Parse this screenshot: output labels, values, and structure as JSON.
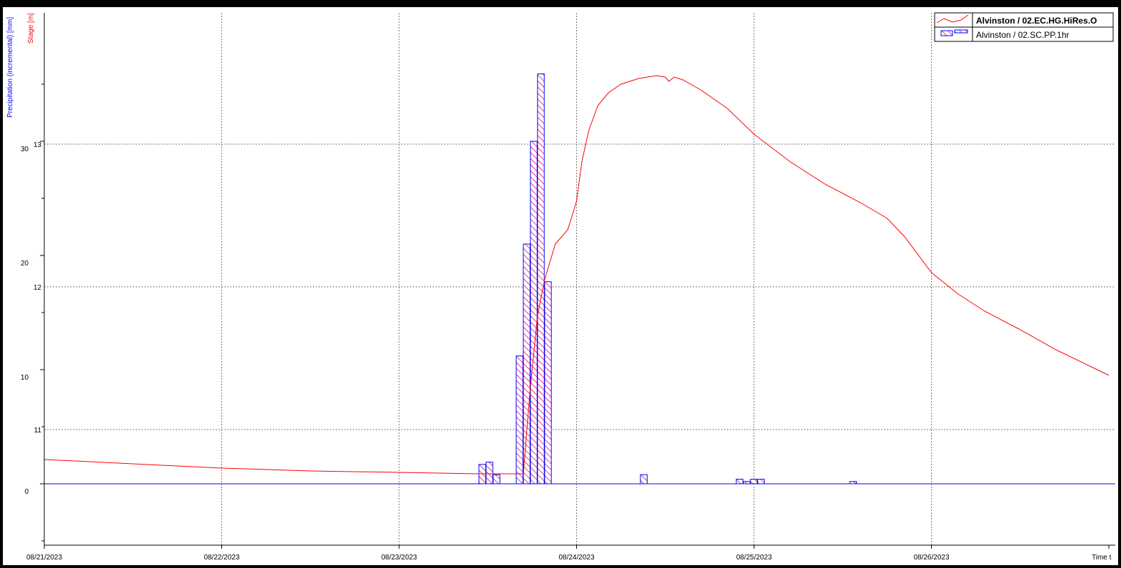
{
  "chart_data": {
    "type": "line",
    "x_tick_labels": [
      "08/21/2023",
      "08/22/2023",
      "08/23/2023",
      "08/24/2023",
      "08/25/2023",
      "08/26/2023"
    ],
    "x_axis_label": "Time t",
    "xlim": [
      "08/21/2023",
      "08/27/2023"
    ],
    "axes": {
      "precipitation": {
        "label": "Precipitation (incremental) [mm]",
        "color": "#0000ff",
        "ylim": [
          -5,
          39
        ],
        "ticks": [
          "0",
          "10",
          "20",
          "30"
        ]
      },
      "stage": {
        "label": "Stage [m]",
        "color": "#ff0000",
        "ticks": [
          "11",
          "12",
          "13"
        ]
      }
    },
    "grid": true,
    "legend_position": "top-right",
    "series": [
      {
        "name": "Alvinston / 02.EC.HG.HiRes.O",
        "type": "line",
        "axis": "stage",
        "color": "#ff0000",
        "legend_bold": true,
        "x_days": [
          0,
          0.5,
          1,
          1.5,
          2,
          2.45,
          2.55,
          2.62,
          2.7,
          2.72,
          2.74,
          2.78,
          2.82,
          2.88,
          2.95,
          3.0,
          3.03,
          3.07,
          3.12,
          3.18,
          3.25,
          3.35,
          3.45,
          3.5,
          3.52,
          3.55,
          3.6,
          3.7,
          3.85,
          4.0,
          4.2,
          4.4,
          4.6,
          4.75,
          4.85,
          5.0,
          5.15,
          5.3,
          5.5,
          5.7,
          5.9,
          6.0
        ],
        "y": [
          10.79,
          10.76,
          10.73,
          10.71,
          10.7,
          10.69,
          10.69,
          10.69,
          10.69,
          11.0,
          11.3,
          11.8,
          12.05,
          12.3,
          12.4,
          12.6,
          12.88,
          13.1,
          13.27,
          13.36,
          13.42,
          13.46,
          13.48,
          13.47,
          13.44,
          13.47,
          13.45,
          13.38,
          13.25,
          13.07,
          12.88,
          12.72,
          12.59,
          12.48,
          12.35,
          12.1,
          11.95,
          11.83,
          11.7,
          11.56,
          11.44,
          11.38
        ]
      },
      {
        "name": "Alvinston / 02.SC.PP.1hr",
        "type": "bar",
        "axis": "precipitation",
        "color": "#0000ff",
        "fill": "#ff6080",
        "x_days": [
          2.45,
          2.49,
          2.53,
          2.66,
          2.7,
          2.74,
          2.78,
          2.82,
          3.36,
          3.9,
          3.94,
          3.98,
          4.02,
          4.54
        ],
        "values": [
          1.7,
          1.9,
          0.8,
          11.2,
          21.0,
          30.0,
          35.9,
          17.7,
          0.8,
          0.4,
          0.2,
          0.4,
          0.4,
          0.2
        ]
      }
    ]
  }
}
